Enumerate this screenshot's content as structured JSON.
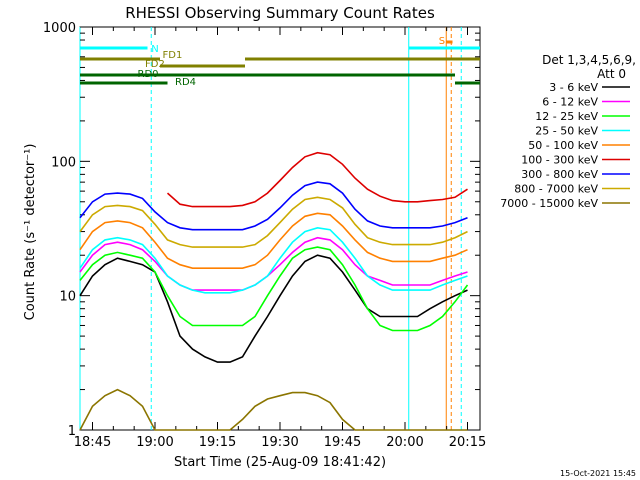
{
  "chart_data": {
    "type": "line",
    "title": "RHESSI Observing Summary Count Rates",
    "xlabel": "Start Time (25-Aug-09 18:41:42)",
    "ylabel": "Count Rate (s⁻¹ detector⁻¹)",
    "yscale": "log",
    "ylim": [
      1,
      1000
    ],
    "xlim_minutes": [
      18.7,
      20.3
    ],
    "xticks": [
      "18:45",
      "19:00",
      "19:15",
      "19:30",
      "19:45",
      "20:00",
      "20:15"
    ],
    "xtick_hours": [
      18.75,
      19.0,
      19.25,
      19.5,
      19.75,
      20.0,
      20.25
    ],
    "yticks": [
      "1",
      "10",
      "100",
      "1000"
    ],
    "ytick_values": [
      1,
      10,
      100,
      1000
    ],
    "legend_header": [
      "Det 1,3,4,5,6,9,",
      "Att 0"
    ],
    "legend_position": "right",
    "series": [
      {
        "name": "3 - 6 keV",
        "color": "#000000",
        "x": [
          18.7,
          18.75,
          18.8,
          18.85,
          18.9,
          18.95,
          19.0,
          19.05,
          19.1,
          19.15,
          19.2,
          19.25,
          19.3,
          19.35,
          19.4,
          19.45,
          19.5,
          19.55,
          19.6,
          19.65,
          19.7,
          19.75,
          19.8,
          19.85,
          19.9,
          19.95,
          20.0,
          20.05,
          20.1,
          20.15,
          20.2,
          20.25
        ],
        "y": [
          10,
          14,
          17,
          19,
          18,
          17,
          15,
          9,
          5,
          4,
          3.5,
          3.2,
          3.2,
          3.5,
          5,
          7,
          10,
          14,
          18,
          20,
          19,
          15,
          11,
          8,
          7,
          7,
          7,
          7,
          8,
          9,
          10,
          11
        ]
      },
      {
        "name": "6 - 12 keV",
        "color": "#ff00ff",
        "x": [
          18.7,
          18.75,
          18.8,
          18.85,
          18.9,
          18.95,
          19.0,
          19.05,
          19.1,
          19.15,
          19.2,
          19.25,
          19.3,
          19.35,
          19.4,
          19.45,
          19.5,
          19.55,
          19.6,
          19.65,
          19.7,
          19.75,
          19.8,
          19.85,
          19.9,
          19.95,
          20.0,
          20.05,
          20.1,
          20.15,
          20.2,
          20.25
        ],
        "y": [
          15,
          20,
          24,
          25,
          24,
          22,
          18,
          14,
          12,
          11,
          11,
          11,
          11,
          11,
          12,
          14,
          17,
          21,
          25,
          27,
          26,
          22,
          17,
          14,
          13,
          12,
          12,
          12,
          12,
          13,
          14,
          15
        ]
      },
      {
        "name": "12 - 25 keV",
        "color": "#00ff00",
        "x": [
          18.7,
          18.75,
          18.8,
          18.85,
          18.9,
          18.95,
          19.0,
          19.05,
          19.1,
          19.15,
          19.2,
          19.25,
          19.3,
          19.35,
          19.4,
          19.45,
          19.5,
          19.55,
          19.6,
          19.65,
          19.7,
          19.75,
          19.8,
          19.85,
          19.9,
          19.95,
          20.0,
          20.05,
          20.1,
          20.15,
          20.2,
          20.25
        ],
        "y": [
          13,
          17,
          20,
          21,
          20,
          19,
          15,
          10,
          7,
          6,
          6,
          6,
          6,
          6,
          7,
          10,
          14,
          19,
          22,
          23,
          22,
          17,
          12,
          8,
          6,
          5.5,
          5.5,
          5.5,
          6,
          7,
          9,
          12
        ]
      },
      {
        "name": "25 - 50 keV",
        "color": "#00ffff",
        "x": [
          18.7,
          18.75,
          18.8,
          18.85,
          18.9,
          18.95,
          19.0,
          19.05,
          19.1,
          19.15,
          19.2,
          19.25,
          19.3,
          19.35,
          19.4,
          19.45,
          19.5,
          19.55,
          19.6,
          19.65,
          19.7,
          19.75,
          19.8,
          19.85,
          19.9,
          19.95,
          20.0,
          20.05,
          20.1,
          20.15,
          20.2,
          20.25
        ],
        "y": [
          16,
          22,
          26,
          27,
          26,
          24,
          19,
          14,
          12,
          11,
          10.5,
          10.5,
          10.5,
          11,
          12,
          14,
          19,
          25,
          30,
          32,
          31,
          25,
          19,
          14,
          12,
          11,
          11,
          11,
          11,
          12,
          13,
          14
        ]
      },
      {
        "name": "50 - 100 keV",
        "color": "#ff8000",
        "x": [
          18.7,
          18.75,
          18.8,
          18.85,
          18.9,
          18.95,
          19.0,
          19.05,
          19.1,
          19.15,
          19.2,
          19.25,
          19.3,
          19.35,
          19.4,
          19.45,
          19.5,
          19.55,
          19.6,
          19.65,
          19.7,
          19.75,
          19.8,
          19.85,
          19.9,
          19.95,
          20.0,
          20.05,
          20.1,
          20.15,
          20.2,
          20.25
        ],
        "y": [
          22,
          30,
          35,
          36,
          35,
          32,
          25,
          19,
          17,
          16,
          16,
          16,
          16,
          16,
          17,
          20,
          26,
          33,
          39,
          41,
          40,
          33,
          26,
          21,
          19,
          18,
          18,
          18,
          18,
          19,
          20,
          22
        ]
      },
      {
        "name": "100 - 300 keV",
        "color": "#dd0000",
        "x": [
          19.05,
          19.1,
          19.15,
          19.2,
          19.25,
          19.3,
          19.35,
          19.4,
          19.45,
          19.5,
          19.55,
          19.6,
          19.65,
          19.7,
          19.75,
          19.8,
          19.85,
          19.9,
          19.95,
          20.0,
          20.05,
          20.1,
          20.15,
          20.2,
          20.25
        ],
        "y": [
          58,
          48,
          46,
          46,
          46,
          46,
          47,
          50,
          58,
          72,
          90,
          108,
          116,
          112,
          95,
          75,
          62,
          55,
          51,
          50,
          50,
          51,
          52,
          54,
          62
        ]
      },
      {
        "name": "300 - 800 keV",
        "color": "#0000ff",
        "x": [
          18.7,
          18.75,
          18.8,
          18.85,
          18.9,
          18.95,
          19.0,
          19.05,
          19.1,
          19.15,
          19.2,
          19.25,
          19.3,
          19.35,
          19.4,
          19.45,
          19.5,
          19.55,
          19.6,
          19.65,
          19.7,
          19.75,
          19.8,
          19.85,
          19.9,
          19.95,
          20.0,
          20.05,
          20.1,
          20.15,
          20.2,
          20.25
        ],
        "y": [
          38,
          50,
          57,
          58,
          57,
          53,
          42,
          35,
          32,
          31,
          31,
          31,
          31,
          31,
          33,
          37,
          45,
          56,
          66,
          70,
          68,
          58,
          44,
          36,
          33,
          32,
          32,
          32,
          32,
          33,
          35,
          38
        ]
      },
      {
        "name": "800 - 7000 keV",
        "color": "#ccaa00",
        "x": [
          18.7,
          18.75,
          18.8,
          18.85,
          18.9,
          18.95,
          19.0,
          19.05,
          19.1,
          19.15,
          19.2,
          19.25,
          19.3,
          19.35,
          19.4,
          19.45,
          19.5,
          19.55,
          19.6,
          19.65,
          19.7,
          19.75,
          19.8,
          19.85,
          19.9,
          19.95,
          20.0,
          20.05,
          20.1,
          20.15,
          20.2,
          20.25
        ],
        "y": [
          30,
          40,
          46,
          47,
          46,
          43,
          34,
          26,
          24,
          23,
          23,
          23,
          23,
          23,
          24,
          28,
          35,
          44,
          52,
          54,
          52,
          45,
          34,
          27,
          25,
          24,
          24,
          24,
          24,
          25,
          27,
          30
        ]
      },
      {
        "name": "7000 - 15000 keV",
        "color": "#8b7500",
        "x": [
          18.7,
          18.75,
          18.8,
          18.85,
          18.9,
          18.95,
          19.0,
          19.3,
          19.35,
          19.4,
          19.45,
          19.5,
          19.55,
          19.6,
          19.65,
          19.7,
          19.75,
          19.8,
          20.25
        ],
        "y": [
          1,
          1.5,
          1.8,
          2.0,
          1.8,
          1.5,
          1,
          1,
          1.2,
          1.5,
          1.7,
          1.8,
          1.9,
          1.9,
          1.8,
          1.6,
          1.2,
          1,
          1
        ]
      }
    ],
    "flag_bars": [
      {
        "label": "N",
        "color": "#00ffff"
      },
      {
        "label": "FD1",
        "color": "#808000"
      },
      {
        "label": "FD2",
        "color": "#808000"
      },
      {
        "label": "RD0",
        "color": "#006400"
      },
      {
        "label": "RD4",
        "color": "#006400"
      },
      {
        "label": "S",
        "color": "#ff8000"
      }
    ],
    "footer_timestamp": "15-Oct-2021 15:45"
  }
}
